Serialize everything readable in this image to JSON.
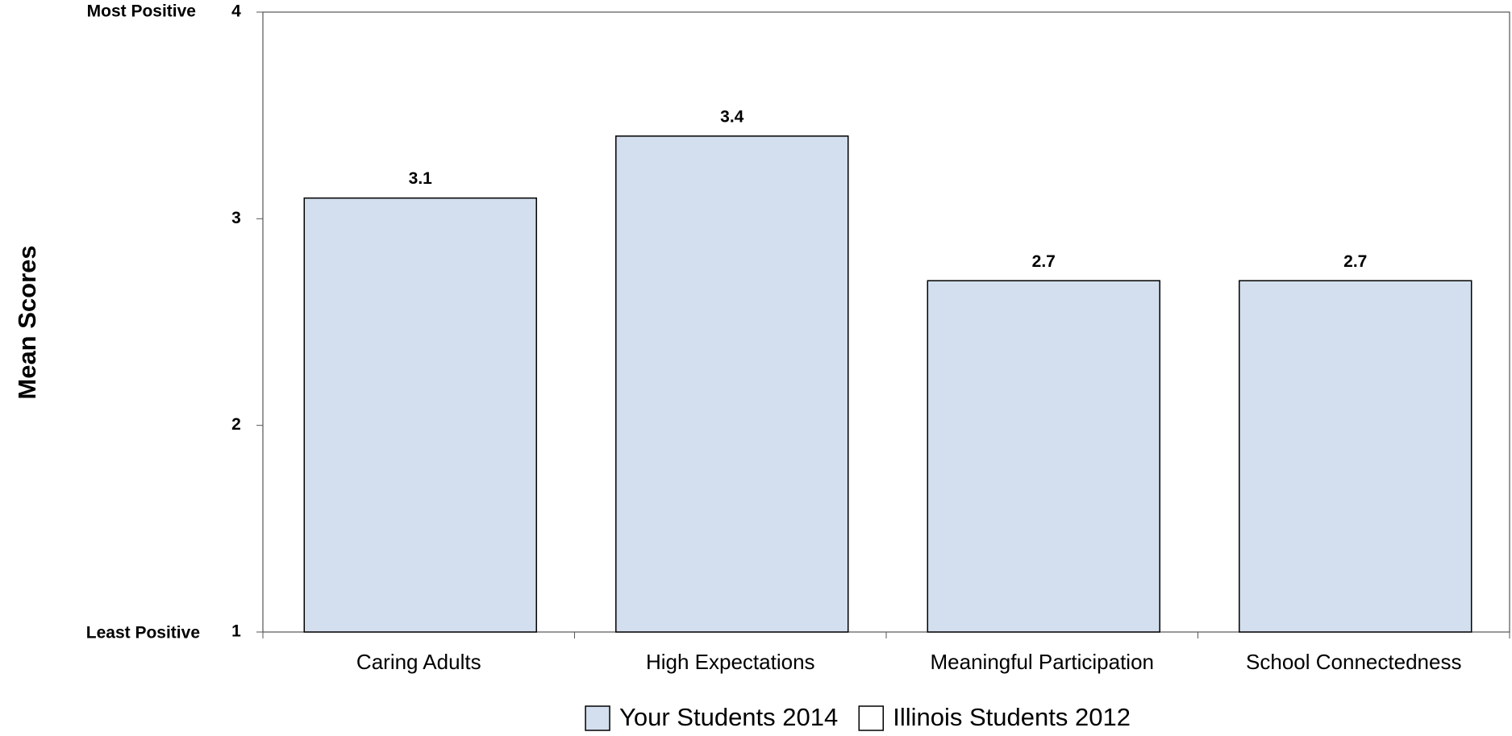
{
  "chart_data": {
    "type": "bar",
    "y_label": "Mean Scores",
    "annotations": {
      "top": "Most Positive",
      "bottom": "Least Positive"
    },
    "categories": [
      "Caring Adults",
      "High Expectations",
      "Meaningful Participation",
      "School Connectedness"
    ],
    "series": [
      {
        "name": "Your Students 2014",
        "color": "#d3dfee",
        "values": [
          3.1,
          3.4,
          2.7,
          2.7
        ]
      },
      {
        "name": "Illinois Students 2012",
        "color": "#ffffff",
        "values": [
          null,
          null,
          null,
          null
        ]
      }
    ],
    "ylim": [
      1,
      4
    ],
    "yticks": [
      1,
      2,
      3,
      4
    ],
    "grid": false
  }
}
